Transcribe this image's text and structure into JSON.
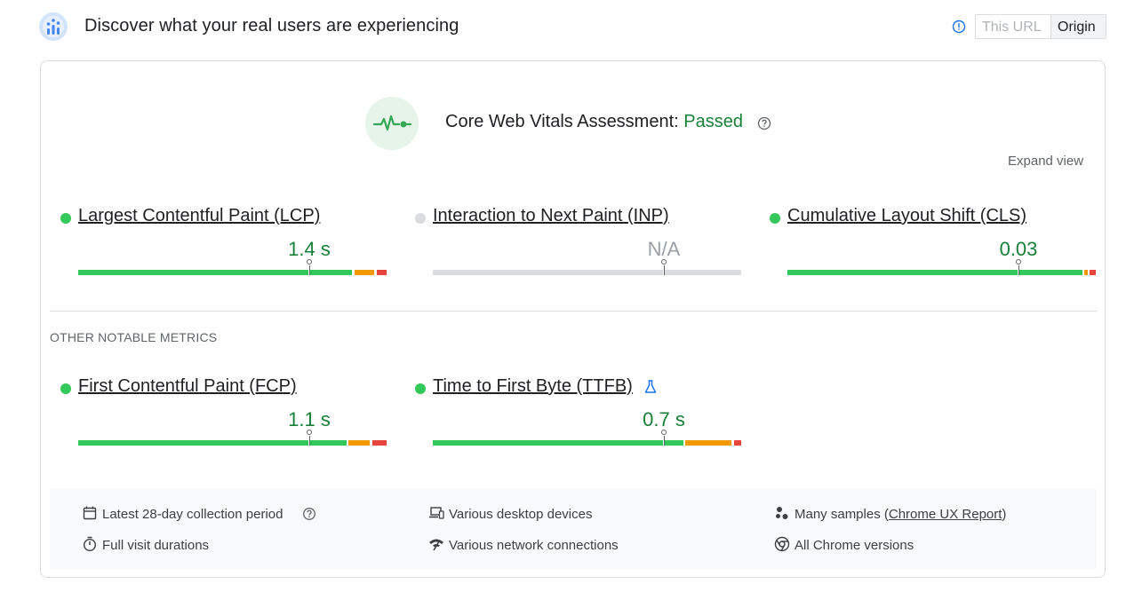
{
  "header": {
    "title": "Discover what your real users are experiencing",
    "toggle": {
      "url_label": "This URL",
      "origin_label": "Origin",
      "selected": "Origin"
    },
    "info_icon": "info-icon",
    "logo_icon": "crux-logo-icon"
  },
  "assessment": {
    "label": "Core Web Vitals Assessment: ",
    "status": "Passed",
    "status_color": "#188038",
    "help_icon": "help-icon",
    "expand_label": "Expand view"
  },
  "core_metrics": [
    {
      "name": "Largest Contentful Paint (LCP)",
      "value": "1.4 s",
      "status": "good"
    },
    {
      "name": "Interaction to Next Paint (INP)",
      "value": "N/A",
      "status": "none"
    },
    {
      "name": "Cumulative Layout Shift (CLS)",
      "value": "0.03",
      "status": "good"
    }
  ],
  "other_section_label": "OTHER NOTABLE METRICS",
  "other_metrics": [
    {
      "name": "First Contentful Paint (FCP)",
      "value": "1.1 s",
      "status": "good"
    },
    {
      "name": "Time to First Byte (TTFB)",
      "value": "0.7 s",
      "status": "good",
      "extra_icon": "flask-icon"
    }
  ],
  "footer": {
    "items": [
      {
        "icon": "calendar-icon",
        "text": "Latest 28-day collection period",
        "help": true
      },
      {
        "icon": "devices-icon",
        "text": "Various desktop devices"
      },
      {
        "icon": "samples-icon",
        "text_before": "Many samples (",
        "link": "Chrome UX Report",
        "text_after": ")"
      },
      {
        "icon": "timer-icon",
        "text": "Full visit durations"
      },
      {
        "icon": "network-icon",
        "text": "Various network connections"
      },
      {
        "icon": "chrome-icon",
        "text": "All Chrome versions"
      }
    ]
  },
  "colors": {
    "good": "#34c759",
    "needs_improvement": "#f29900",
    "poor": "#e8453c",
    "none": "#dadce0",
    "value_good": "#188038"
  }
}
